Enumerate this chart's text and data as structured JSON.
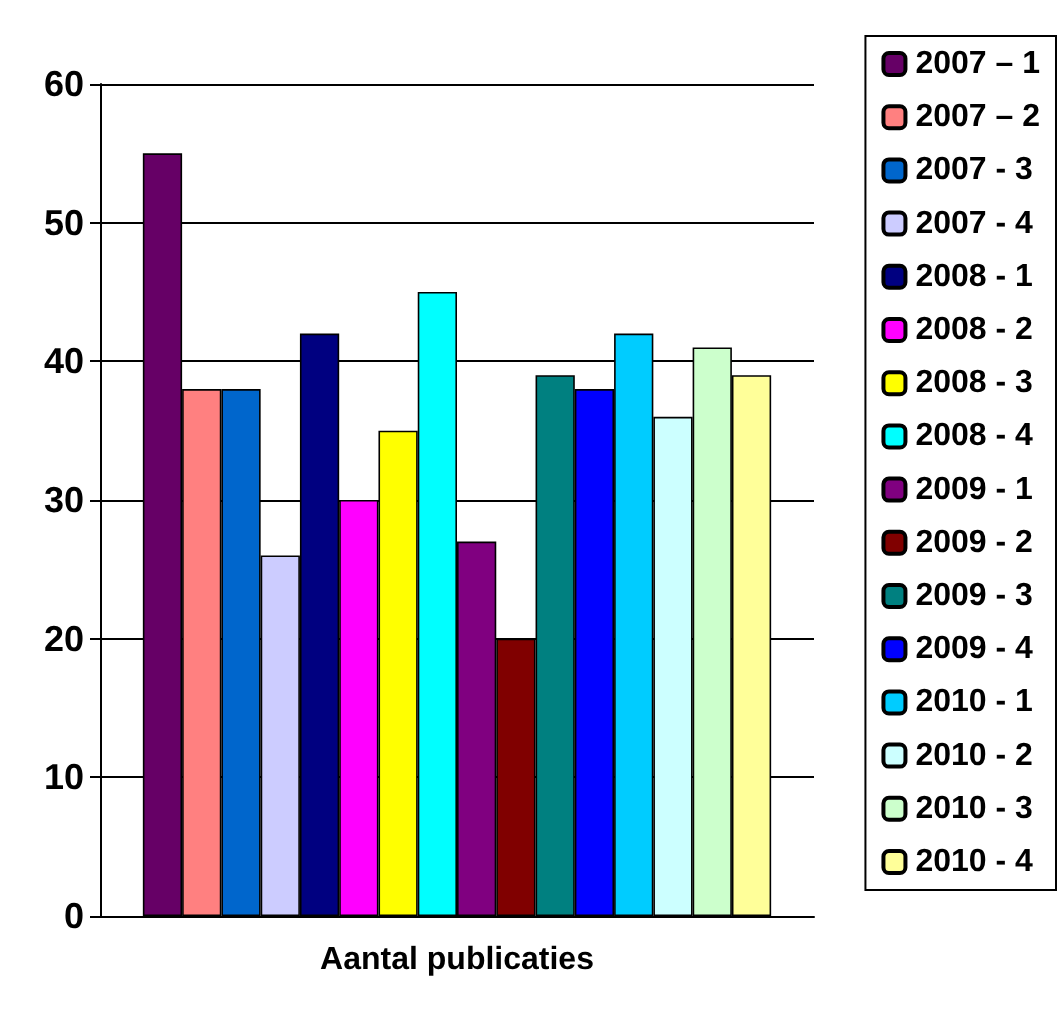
{
  "chart_data": {
    "type": "bar",
    "xlabel": null,
    "categories": [
      "Aantal publicaties"
    ],
    "series": [
      {
        "name": "2007 – 1",
        "color": "#660066",
        "values": [
          55
        ]
      },
      {
        "name": "2007 – 2",
        "color": "#ff8080",
        "values": [
          38
        ]
      },
      {
        "name": "2007 - 3",
        "color": "#0066cc",
        "values": [
          38
        ]
      },
      {
        "name": "2007 - 4",
        "color": "#ccccff",
        "values": [
          26
        ]
      },
      {
        "name": "2008 - 1",
        "color": "#000080",
        "values": [
          42
        ]
      },
      {
        "name": "2008 - 2",
        "color": "#ff00ff",
        "values": [
          30
        ]
      },
      {
        "name": "2008 - 3",
        "color": "#ffff00",
        "values": [
          35
        ]
      },
      {
        "name": "2008 - 4",
        "color": "#00ffff",
        "values": [
          45
        ]
      },
      {
        "name": "2009 - 1",
        "color": "#800080",
        "values": [
          27
        ]
      },
      {
        "name": "2009 - 2",
        "color": "#800000",
        "values": [
          20
        ]
      },
      {
        "name": "2009 - 3",
        "color": "#008080",
        "values": [
          39
        ]
      },
      {
        "name": "2009 - 4",
        "color": "#0000ff",
        "values": [
          38
        ]
      },
      {
        "name": "2010 - 1",
        "color": "#00ccff",
        "values": [
          42
        ]
      },
      {
        "name": "2010 - 2",
        "color": "#ccffff",
        "values": [
          36
        ]
      },
      {
        "name": "2010 - 3",
        "color": "#ccffcc",
        "values": [
          41
        ]
      },
      {
        "name": "2010 - 4",
        "color": "#ffff99",
        "values": [
          39
        ]
      }
    ],
    "ylim": [
      0,
      60
    ],
    "yticks": [
      0,
      10,
      20,
      30,
      40,
      50,
      60
    ],
    "grid": "y",
    "legend": "right"
  }
}
